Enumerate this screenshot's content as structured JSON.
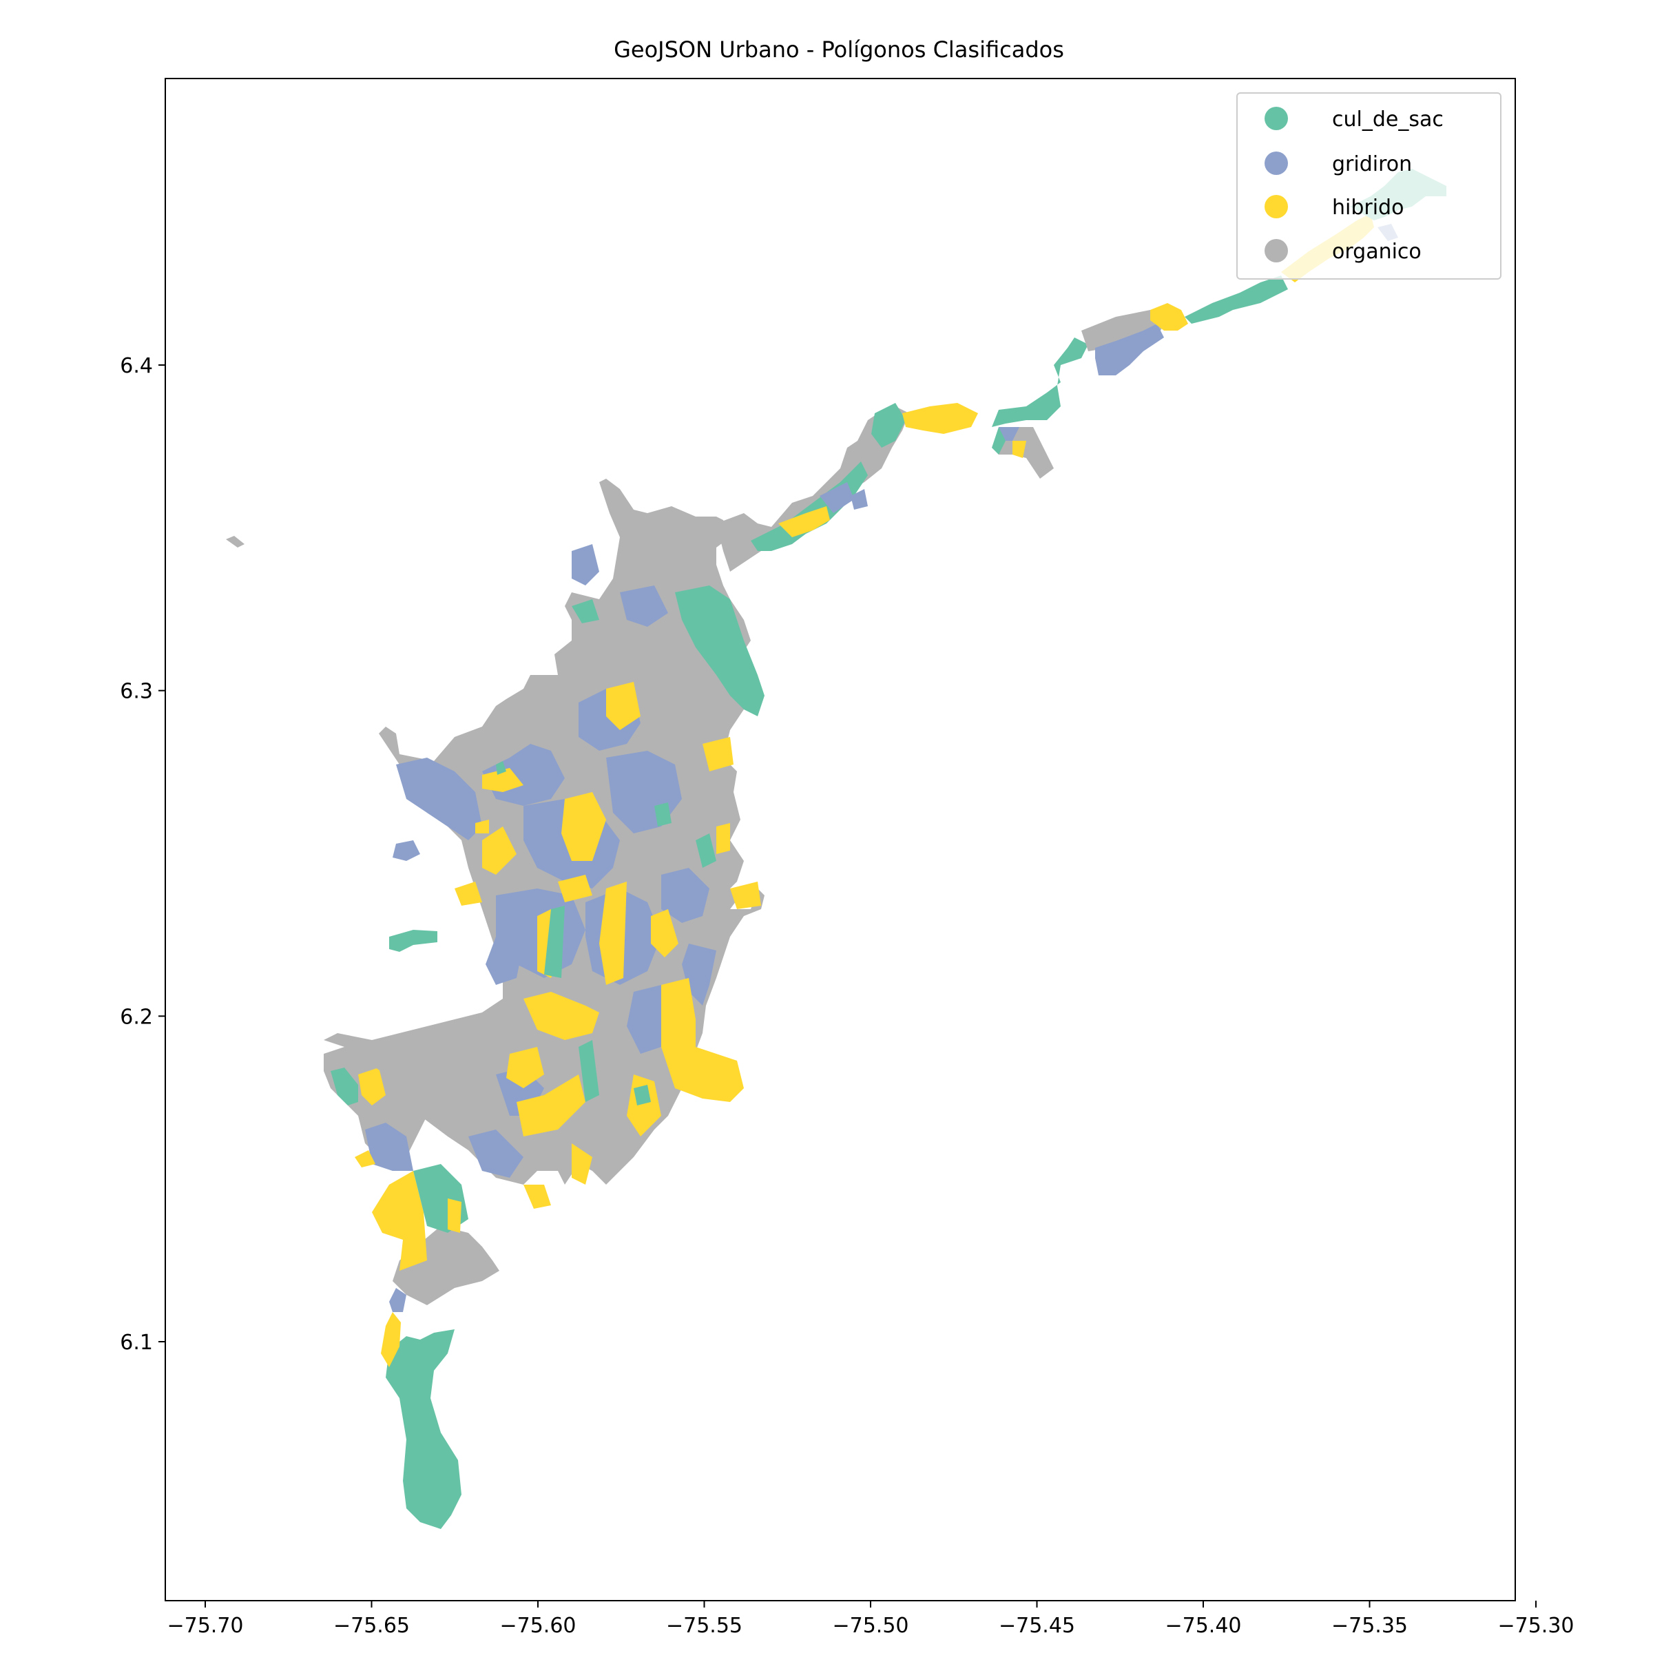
{
  "title": "GeoJSON Urbano - Polígonos Clasificados",
  "legend": {
    "items": [
      {
        "label": "cul_de_sac",
        "color": "#66c2a5"
      },
      {
        "label": "gridiron",
        "color": "#8da0cb"
      },
      {
        "label": "hibrido",
        "color": "#ffd92f"
      },
      {
        "label": "organico",
        "color": "#b3b3b3"
      }
    ]
  },
  "axes": {
    "x_ticks": [
      {
        "value": -75.7,
        "label": "−75.70"
      },
      {
        "value": -75.65,
        "label": "−75.65"
      },
      {
        "value": -75.6,
        "label": "−75.60"
      },
      {
        "value": -75.55,
        "label": "−75.55"
      },
      {
        "value": -75.5,
        "label": "−75.50"
      },
      {
        "value": -75.45,
        "label": "−75.45"
      },
      {
        "value": -75.4,
        "label": "−75.40"
      },
      {
        "value": -75.35,
        "label": "−75.35"
      },
      {
        "value": -75.3,
        "label": "−75.30"
      }
    ],
    "y_ticks": [
      {
        "value": 6.1,
        "label": "6.1"
      },
      {
        "value": 6.2,
        "label": "6.2"
      },
      {
        "value": 6.3,
        "label": "6.3"
      },
      {
        "value": 6.4,
        "label": "6.4"
      }
    ]
  }
}
